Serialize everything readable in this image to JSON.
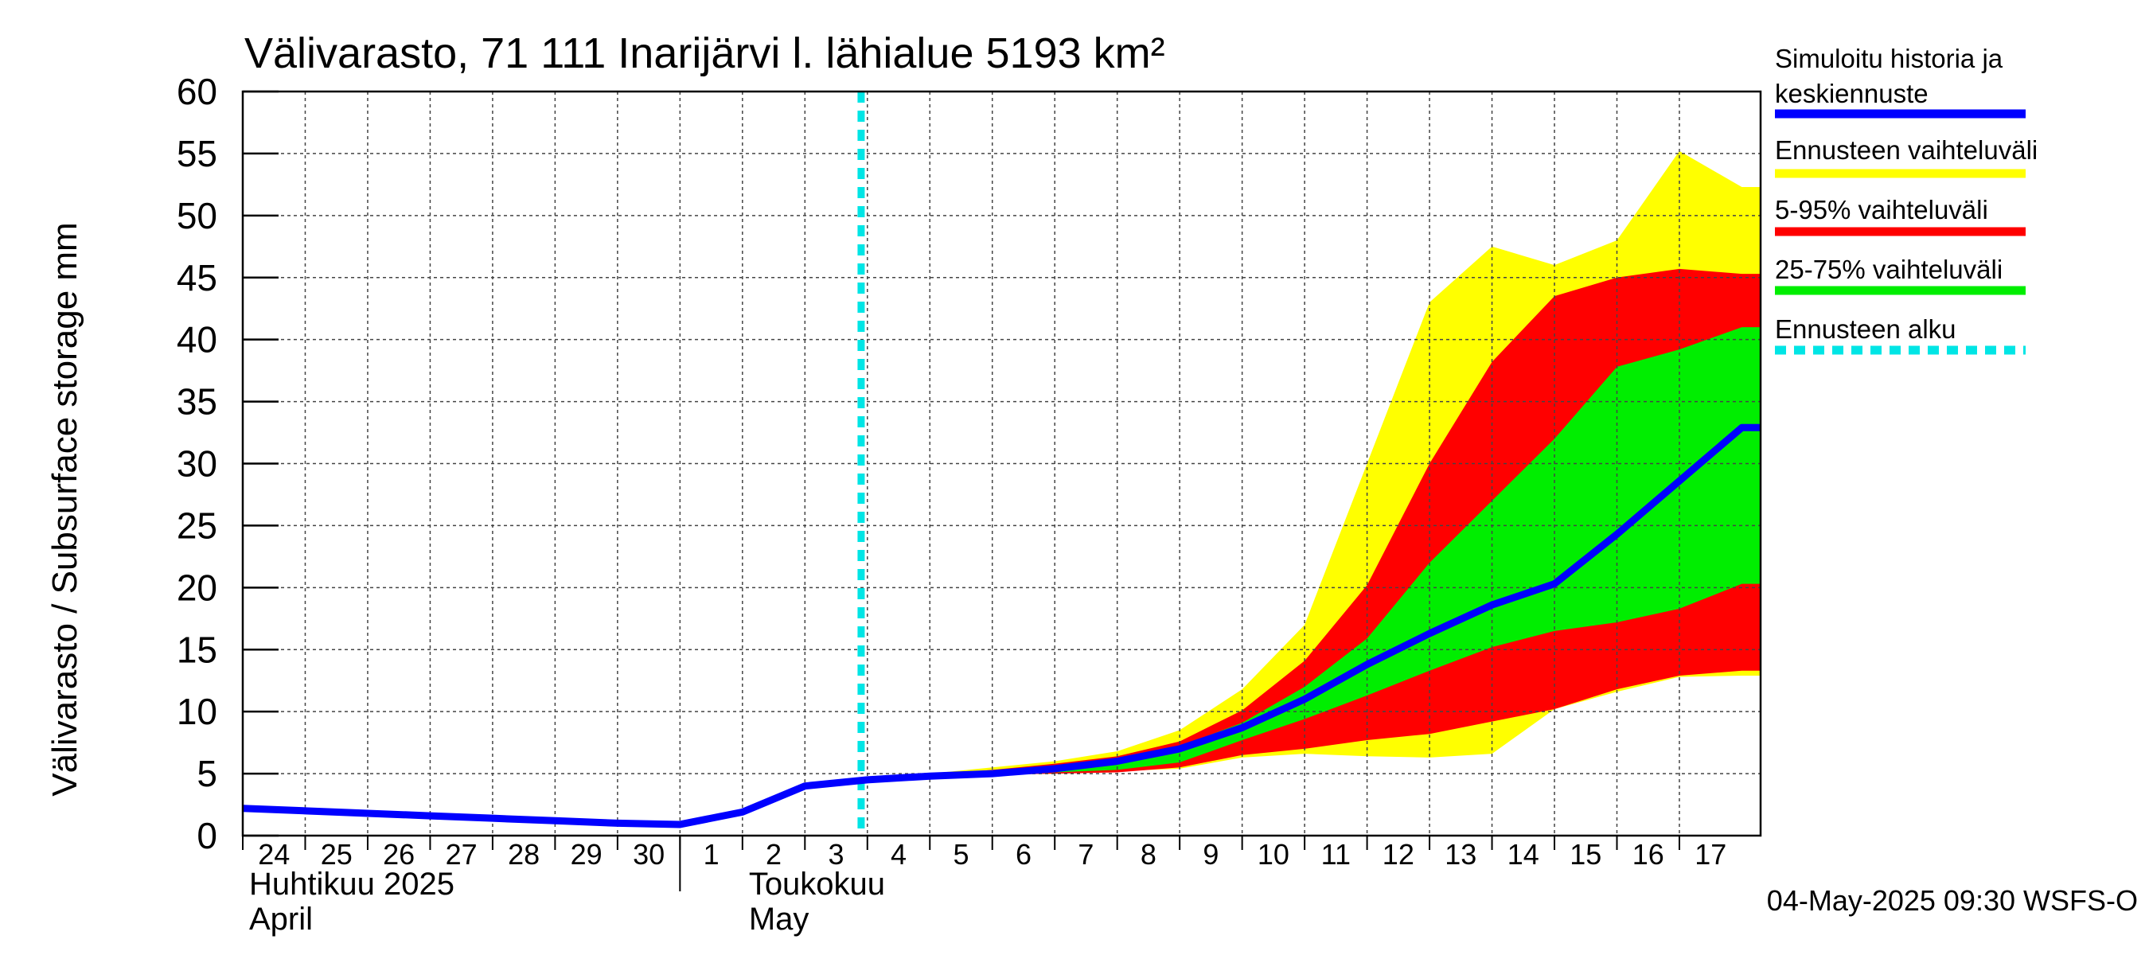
{
  "chart_data": {
    "type": "area",
    "title": "Välivarasto, 71 111 Inarijärvi l. lähialue 5193 km²",
    "ylabel": "Välivarasto / Subsurface storage  mm",
    "ylim": [
      0,
      60
    ],
    "yticks": [
      "0",
      "5",
      "10",
      "15",
      "20",
      "25",
      "30",
      "35",
      "40",
      "45",
      "50",
      "55",
      "60"
    ],
    "grid": true,
    "x_range": [
      23.5,
      47.8
    ],
    "day_ticks": [
      {
        "x": 24,
        "label": "24"
      },
      {
        "x": 25,
        "label": "25"
      },
      {
        "x": 26,
        "label": "26"
      },
      {
        "x": 27,
        "label": "27"
      },
      {
        "x": 28,
        "label": "28"
      },
      {
        "x": 29,
        "label": "29"
      },
      {
        "x": 30,
        "label": "30"
      },
      {
        "x": 31,
        "label": "1"
      },
      {
        "x": 32,
        "label": "2"
      },
      {
        "x": 33,
        "label": "3"
      },
      {
        "x": 34,
        "label": "4"
      },
      {
        "x": 35,
        "label": "5"
      },
      {
        "x": 36,
        "label": "6"
      },
      {
        "x": 37,
        "label": "7"
      },
      {
        "x": 38,
        "label": "8"
      },
      {
        "x": 39,
        "label": "9"
      },
      {
        "x": 40,
        "label": "10"
      },
      {
        "x": 41,
        "label": "11"
      },
      {
        "x": 42,
        "label": "12"
      },
      {
        "x": 43,
        "label": "13"
      },
      {
        "x": 44,
        "label": "14"
      },
      {
        "x": 45,
        "label": "15"
      },
      {
        "x": 46,
        "label": "16"
      },
      {
        "x": 47,
        "label": "17"
      }
    ],
    "month_separator_x": 30.5,
    "month_labels": [
      {
        "x": 23.5,
        "fi": "Huhtikuu  2025",
        "en": "April"
      },
      {
        "x": 31.5,
        "fi": "Toukokuu",
        "en": "May"
      }
    ],
    "forecast_start_x": 33.4,
    "x": [
      23.5,
      24.5,
      25.5,
      26.5,
      27.5,
      28.5,
      29.5,
      30.5,
      31.5,
      32.5,
      33.5,
      34.5,
      35.5,
      36.5,
      37.5,
      38.5,
      39.5,
      40.5,
      41.5,
      42.5,
      43.5,
      44.5,
      45.5,
      46.5,
      47.5,
      47.8
    ],
    "series": [
      {
        "name": "Simuloitu historia ja keskiennuste",
        "color": "#0000ff",
        "values": [
          2.2,
          2.0,
          1.8,
          1.6,
          1.4,
          1.2,
          1.0,
          0.9,
          1.9,
          4.0,
          4.5,
          4.8,
          5.0,
          5.4,
          6.0,
          7.0,
          8.7,
          11.0,
          13.8,
          16.3,
          18.6,
          20.3,
          24.3,
          28.6,
          32.9,
          32.9
        ]
      }
    ],
    "bands": [
      {
        "name": "Ennusteen vaihteluväli",
        "color": "#ffff00",
        "start": 10,
        "lower": [
          4.5,
          4.7,
          4.9,
          5.0,
          5.2,
          5.4,
          6.3,
          6.6,
          6.4,
          6.3,
          6.6,
          10.2,
          11.6,
          12.8,
          12.9,
          12.9
        ],
        "upper": [
          4.5,
          5.0,
          5.5,
          6.0,
          6.8,
          8.5,
          11.8,
          17.0,
          30.0,
          43.0,
          47.5,
          46.0,
          48.0,
          55.2,
          52.3,
          52.3
        ]
      },
      {
        "name": "5-95% vaihteluväli",
        "color": "#ff0000",
        "start": 10,
        "lower": [
          4.5,
          4.7,
          4.9,
          5.0,
          5.1,
          5.5,
          6.5,
          7.0,
          7.7,
          8.2,
          9.2,
          10.2,
          11.8,
          12.9,
          13.3,
          13.3
        ],
        "upper": [
          4.5,
          4.9,
          5.3,
          5.8,
          6.4,
          7.6,
          10.1,
          14.1,
          20.2,
          30.0,
          38.2,
          43.5,
          45.0,
          45.7,
          45.3,
          45.3
        ]
      },
      {
        "name": "25-75% vaihteluväli",
        "color": "#00ee00",
        "start": 10,
        "lower": [
          4.5,
          4.7,
          4.9,
          5.1,
          5.3,
          5.9,
          7.7,
          9.4,
          11.3,
          13.3,
          15.2,
          16.5,
          17.2,
          18.3,
          20.3,
          20.3
        ],
        "upper": [
          4.5,
          4.8,
          5.1,
          5.6,
          6.2,
          7.2,
          9.1,
          12.0,
          15.9,
          22.0,
          27.0,
          32.0,
          37.8,
          39.2,
          41.0,
          41.0
        ]
      }
    ],
    "legend": {
      "placement": "right",
      "entries": [
        {
          "label_lines": [
            "Simuloitu historia ja",
            "keskiennuste"
          ],
          "color": "#0000ff",
          "style": "solid"
        },
        {
          "label_lines": [
            "Ennusteen vaihteluväli"
          ],
          "color": "#ffff00",
          "style": "solid"
        },
        {
          "label_lines": [
            "5-95% vaihteluväli"
          ],
          "color": "#ff0000",
          "style": "solid"
        },
        {
          "label_lines": [
            "25-75% vaihteluväli"
          ],
          "color": "#00ee00",
          "style": "solid"
        },
        {
          "label_lines": [
            "Ennusteen alku"
          ],
          "color": "#00e5e5",
          "style": "dashed"
        }
      ]
    },
    "footer": "04-May-2025 09:30 WSFS-O"
  }
}
